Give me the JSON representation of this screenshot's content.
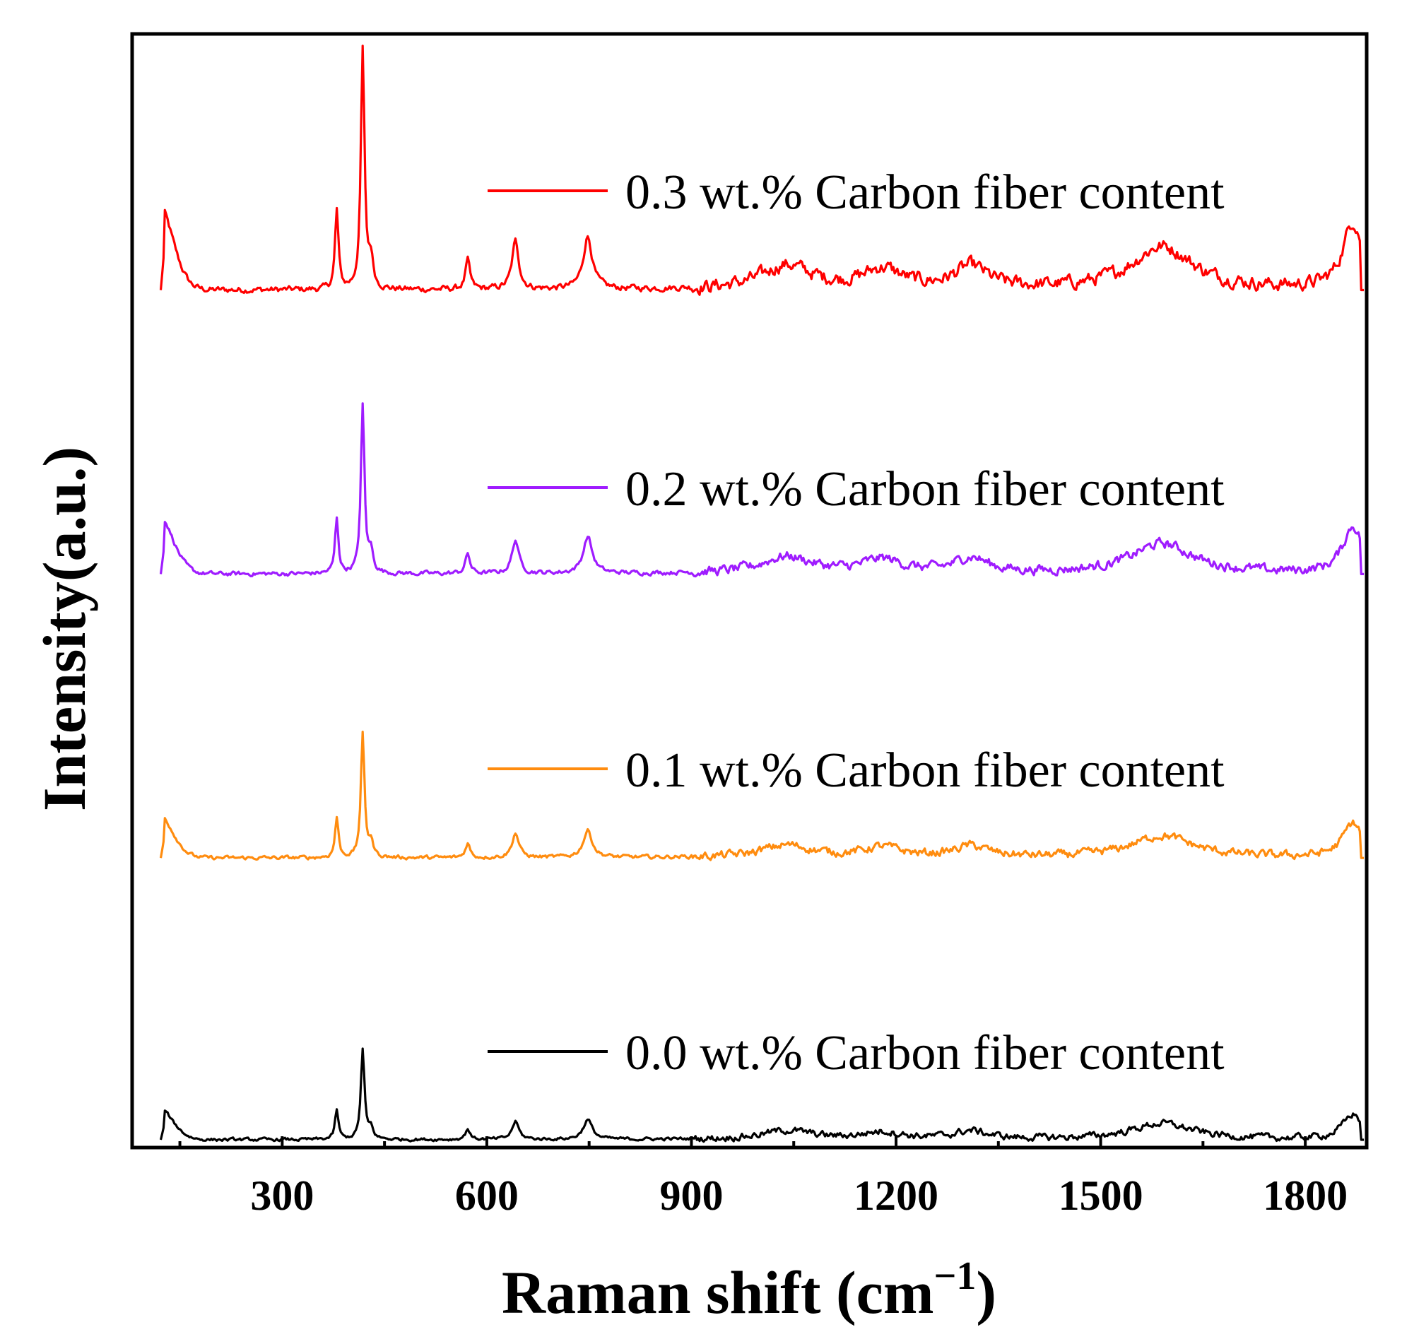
{
  "chart_data": {
    "type": "line",
    "title": "",
    "xlabel": "Raman shift (cm",
    "xlabel_sup": "−1",
    "xlabel_close": ")",
    "ylabel": "Intensity(a.u.)",
    "xlim": [
      80,
      1890
    ],
    "xticks": [
      300,
      600,
      900,
      1200,
      1500,
      1800
    ],
    "xtick_labels": [
      "300",
      "600",
      "900",
      "1200",
      "1500",
      "1800"
    ],
    "ylim": [
      0,
      10
    ],
    "yticks_shown": false,
    "grid": false,
    "legend_placement": "inline-right",
    "peaks": [
      {
        "x": 115,
        "w": 20,
        "rel": 0.38,
        "shape": "asym"
      },
      {
        "x": 380,
        "w": 3,
        "rel": 0.33
      },
      {
        "x": 418,
        "w": 3.2,
        "rel": 1.0
      },
      {
        "x": 430,
        "w": 4,
        "rel": 0.12
      },
      {
        "x": 572,
        "w": 4,
        "rel": 0.12
      },
      {
        "x": 642,
        "w": 6,
        "rel": 0.2
      },
      {
        "x": 748,
        "w": 8,
        "rel": 0.22
      },
      {
        "x": 1040,
        "w": 45,
        "rel": 0.1
      },
      {
        "x": 1180,
        "w": 35,
        "rel": 0.08
      },
      {
        "x": 1310,
        "w": 30,
        "rel": 0.09
      },
      {
        "x": 1590,
        "w": 55,
        "rel": 0.18
      },
      {
        "x": 1870,
        "w": 18,
        "rel": 0.28
      }
    ],
    "series": [
      {
        "name": "0.3 wt.% Carbon fiber content",
        "color": "#ff0000",
        "baseline": 7.7,
        "peak_scale": 2.15,
        "noise": 0.05
      },
      {
        "name": "0.2 wt.% Carbon fiber content",
        "color": "#9f1cff",
        "baseline": 5.15,
        "peak_scale": 1.5,
        "noise": 0.035
      },
      {
        "name": "0.1 wt.% Carbon fiber content",
        "color": "#ff8c0f",
        "baseline": 2.6,
        "peak_scale": 1.1,
        "noise": 0.03
      },
      {
        "name": "0.0 wt.% Carbon fiber content",
        "color": "#000000",
        "baseline": 0.07,
        "peak_scale": 0.8,
        "noise": 0.025
      }
    ]
  }
}
